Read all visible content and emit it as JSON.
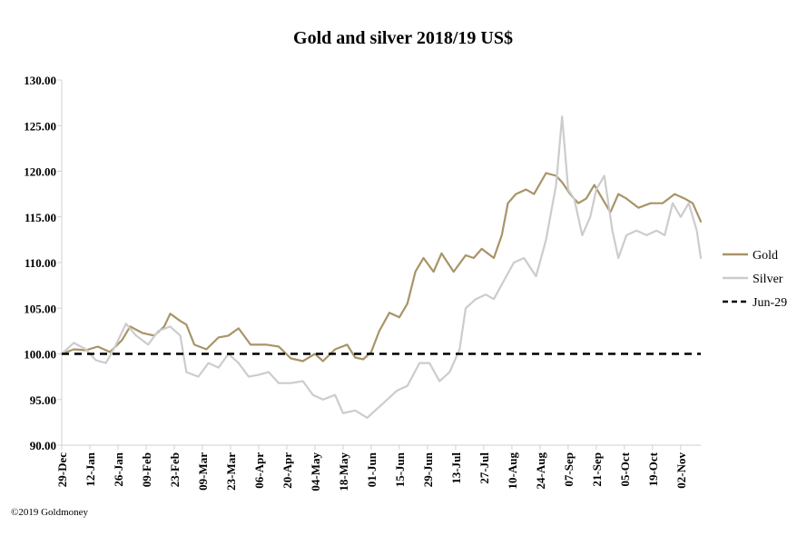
{
  "chart_data": {
    "type": "line",
    "title": "Gold and silver 2018/19  US$",
    "xlabel": "",
    "ylabel": "",
    "ylim": [
      90,
      130
    ],
    "yticks": [
      "90.00",
      "95.00",
      "100.00",
      "105.00",
      "110.00",
      "115.00",
      "120.00",
      "125.00",
      "130.00"
    ],
    "xticks": [
      "29-Dec",
      "12-Jan",
      "26-Jan",
      "09-Feb",
      "23-Feb",
      "09-Mar",
      "23-Mar",
      "06-Apr",
      "20-Apr",
      "04-May",
      "18-May",
      "01-Jun",
      "15-Jun",
      "29-Jun",
      "13-Jul",
      "27-Jul",
      "10-Aug",
      "24-Aug",
      "07-Sep",
      "21-Sep",
      "05-Oct",
      "19-Oct",
      "02-Nov"
    ],
    "x_start": "2018-12-29",
    "x_end": "2019-11-12",
    "grid": false,
    "legend_position": "right",
    "series": [
      {
        "name": "Gold",
        "color": "#a89468",
        "style": "solid",
        "points": [
          [
            "2018-12-29",
            100.0
          ],
          [
            "2019-01-04",
            100.5
          ],
          [
            "2019-01-10",
            100.4
          ],
          [
            "2019-01-16",
            100.8
          ],
          [
            "2019-01-22",
            100.2
          ],
          [
            "2019-01-28",
            101.5
          ],
          [
            "2019-02-01",
            103.0
          ],
          [
            "2019-02-07",
            102.3
          ],
          [
            "2019-02-13",
            102.0
          ],
          [
            "2019-02-18",
            103.0
          ],
          [
            "2019-02-21",
            104.4
          ],
          [
            "2019-02-26",
            103.6
          ],
          [
            "2019-03-01",
            103.2
          ],
          [
            "2019-03-05",
            101.0
          ],
          [
            "2019-03-11",
            100.5
          ],
          [
            "2019-03-17",
            101.8
          ],
          [
            "2019-03-22",
            102.0
          ],
          [
            "2019-03-27",
            102.8
          ],
          [
            "2019-04-02",
            101.0
          ],
          [
            "2019-04-10",
            101.0
          ],
          [
            "2019-04-16",
            100.8
          ],
          [
            "2019-04-22",
            99.5
          ],
          [
            "2019-04-28",
            99.2
          ],
          [
            "2019-05-04",
            100.0
          ],
          [
            "2019-05-08",
            99.2
          ],
          [
            "2019-05-14",
            100.5
          ],
          [
            "2019-05-20",
            101.0
          ],
          [
            "2019-05-24",
            99.6
          ],
          [
            "2019-05-28",
            99.4
          ],
          [
            "2019-06-01",
            100.2
          ],
          [
            "2019-06-05",
            102.5
          ],
          [
            "2019-06-10",
            104.5
          ],
          [
            "2019-06-15",
            104.0
          ],
          [
            "2019-06-19",
            105.5
          ],
          [
            "2019-06-23",
            109.0
          ],
          [
            "2019-06-27",
            110.5
          ],
          [
            "2019-07-02",
            109.0
          ],
          [
            "2019-07-06",
            111.0
          ],
          [
            "2019-07-12",
            109.0
          ],
          [
            "2019-07-18",
            110.8
          ],
          [
            "2019-07-22",
            110.5
          ],
          [
            "2019-07-26",
            111.5
          ],
          [
            "2019-08-01",
            110.5
          ],
          [
            "2019-08-05",
            113.0
          ],
          [
            "2019-08-08",
            116.5
          ],
          [
            "2019-08-12",
            117.5
          ],
          [
            "2019-08-17",
            118.0
          ],
          [
            "2019-08-21",
            117.5
          ],
          [
            "2019-08-27",
            119.8
          ],
          [
            "2019-09-01",
            119.5
          ],
          [
            "2019-09-04",
            118.8
          ],
          [
            "2019-09-08",
            117.5
          ],
          [
            "2019-09-12",
            116.5
          ],
          [
            "2019-09-16",
            117.0
          ],
          [
            "2019-09-20",
            118.5
          ],
          [
            "2019-09-24",
            117.0
          ],
          [
            "2019-09-28",
            115.5
          ],
          [
            "2019-10-02",
            117.5
          ],
          [
            "2019-10-06",
            117.0
          ],
          [
            "2019-10-12",
            116.0
          ],
          [
            "2019-10-18",
            116.5
          ],
          [
            "2019-10-24",
            116.5
          ],
          [
            "2019-10-30",
            117.5
          ],
          [
            "2019-11-04",
            117.0
          ],
          [
            "2019-11-08",
            116.5
          ],
          [
            "2019-11-12",
            114.5
          ]
        ]
      },
      {
        "name": "Silver",
        "color": "#cccccc",
        "style": "solid",
        "points": [
          [
            "2018-12-29",
            100.0
          ],
          [
            "2019-01-04",
            101.2
          ],
          [
            "2019-01-10",
            100.5
          ],
          [
            "2019-01-15",
            99.3
          ],
          [
            "2019-01-20",
            99.0
          ],
          [
            "2019-01-25",
            101.0
          ],
          [
            "2019-01-30",
            103.3
          ],
          [
            "2019-02-04",
            102.0
          ],
          [
            "2019-02-10",
            101.0
          ],
          [
            "2019-02-15",
            102.5
          ],
          [
            "2019-02-21",
            103.0
          ],
          [
            "2019-02-26",
            102.0
          ],
          [
            "2019-03-01",
            98.0
          ],
          [
            "2019-03-07",
            97.5
          ],
          [
            "2019-03-12",
            99.0
          ],
          [
            "2019-03-17",
            98.5
          ],
          [
            "2019-03-22",
            100.0
          ],
          [
            "2019-03-27",
            99.0
          ],
          [
            "2019-04-01",
            97.5
          ],
          [
            "2019-04-06",
            97.7
          ],
          [
            "2019-04-11",
            98.0
          ],
          [
            "2019-04-16",
            96.8
          ],
          [
            "2019-04-22",
            96.8
          ],
          [
            "2019-04-28",
            97.0
          ],
          [
            "2019-05-03",
            95.5
          ],
          [
            "2019-05-08",
            95.0
          ],
          [
            "2019-05-14",
            95.5
          ],
          [
            "2019-05-18",
            93.5
          ],
          [
            "2019-05-24",
            93.8
          ],
          [
            "2019-05-30",
            93.0
          ],
          [
            "2019-06-04",
            94.0
          ],
          [
            "2019-06-09",
            95.0
          ],
          [
            "2019-06-14",
            96.0
          ],
          [
            "2019-06-19",
            96.5
          ],
          [
            "2019-06-25",
            99.0
          ],
          [
            "2019-06-30",
            99.0
          ],
          [
            "2019-07-05",
            97.0
          ],
          [
            "2019-07-10",
            98.0
          ],
          [
            "2019-07-15",
            100.5
          ],
          [
            "2019-07-18",
            105.0
          ],
          [
            "2019-07-23",
            106.0
          ],
          [
            "2019-07-28",
            106.5
          ],
          [
            "2019-08-01",
            106.0
          ],
          [
            "2019-08-06",
            108.0
          ],
          [
            "2019-08-11",
            110.0
          ],
          [
            "2019-08-16",
            110.5
          ],
          [
            "2019-08-22",
            108.5
          ],
          [
            "2019-08-27",
            112.5
          ],
          [
            "2019-09-01",
            118.5
          ],
          [
            "2019-09-04",
            126.0
          ],
          [
            "2019-09-07",
            118.0
          ],
          [
            "2019-09-10",
            117.0
          ],
          [
            "2019-09-14",
            113.0
          ],
          [
            "2019-09-18",
            115.0
          ],
          [
            "2019-09-21",
            118.0
          ],
          [
            "2019-09-25",
            119.5
          ],
          [
            "2019-09-29",
            113.5
          ],
          [
            "2019-10-02",
            110.5
          ],
          [
            "2019-10-06",
            113.0
          ],
          [
            "2019-10-11",
            113.5
          ],
          [
            "2019-10-16",
            113.0
          ],
          [
            "2019-10-21",
            113.5
          ],
          [
            "2019-10-25",
            113.0
          ],
          [
            "2019-10-29",
            116.5
          ],
          [
            "2019-11-02",
            115.0
          ],
          [
            "2019-11-06",
            116.5
          ],
          [
            "2019-11-10",
            113.5
          ],
          [
            "2019-11-12",
            110.5
          ]
        ]
      },
      {
        "name": "Jun-29",
        "color": "#000000",
        "style": "dashed",
        "points": [
          [
            "2018-12-29",
            100.0
          ],
          [
            "2019-11-12",
            100.0
          ]
        ]
      }
    ]
  },
  "footer": "©2019 Goldmoney"
}
